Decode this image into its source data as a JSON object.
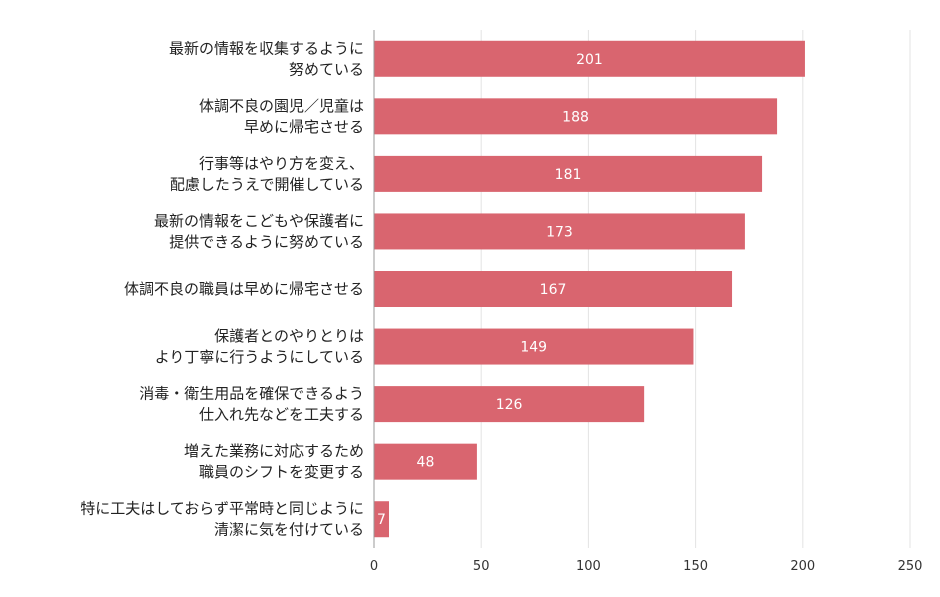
{
  "chart_data": {
    "type": "bar",
    "orientation": "horizontal",
    "bar_color": "#d9656f",
    "grid": true,
    "xlim": [
      0,
      250
    ],
    "x_ticks": [
      "0",
      "50",
      "100",
      "150",
      "200",
      "250"
    ],
    "categories": [
      [
        "最新の情報を収集するように",
        "努めている"
      ],
      [
        "体調不良の園児／児童は",
        "早めに帰宅させる"
      ],
      [
        "行事等はやり方を変え、",
        "配慮したうえで開催している"
      ],
      [
        "最新の情報をこどもや保護者に",
        "提供できるように努めている"
      ],
      [
        "体調不良の職員は早めに帰宅させる"
      ],
      [
        "保護者とのやりとりは",
        "より丁寧に行うようにしている"
      ],
      [
        "消毒・衛生用品を確保できるよう",
        "仕入れ先などを工夫する"
      ],
      [
        "増えた業務に対応するため",
        "職員のシフトを変更する"
      ],
      [
        "特に工夫はしておらず平常時と同じように",
        "清潔に気を付けている"
      ]
    ],
    "values": [
      201,
      188,
      181,
      173,
      167,
      149,
      126,
      48,
      7
    ]
  }
}
